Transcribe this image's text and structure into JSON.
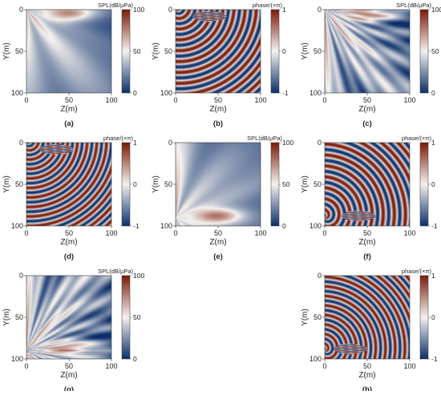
{
  "colormap": {
    "low": "#0b2f6b",
    "mid": "#f4f1ee",
    "high": "#7a1a07"
  },
  "chart_data": [
    {
      "id": "a",
      "type": "heatmap",
      "quantity": "SPL",
      "title": "SPL(dB/μPa)",
      "caption": "(a)",
      "xlabel": "Z(m)",
      "ylabel": "Y(m)",
      "xlim": [
        0,
        100
      ],
      "ylim": [
        0,
        100
      ],
      "xticks": [
        "0",
        "50",
        "100"
      ],
      "yticks": [
        "0",
        "50",
        "100"
      ],
      "colorbar_ticks": [
        "100",
        "50",
        "0"
      ],
      "clim": [
        0,
        100
      ],
      "source_y": 0,
      "focus": [
        50,
        5
      ]
    },
    {
      "id": "b",
      "type": "heatmap",
      "quantity": "phase",
      "title": "phase/(×π)",
      "caption": "(b)",
      "xlabel": "Z(m)",
      "ylabel": "Y(m)",
      "xlim": [
        0,
        100
      ],
      "ylim": [
        0,
        100
      ],
      "xticks": [
        "0",
        "50",
        "100"
      ],
      "yticks": [
        "0",
        "50",
        "100"
      ],
      "colorbar_ticks": [
        "1",
        "0",
        "-1"
      ],
      "clim": [
        -1,
        1
      ],
      "source_y": 0,
      "focus": [
        40,
        8
      ]
    },
    {
      "id": "c",
      "type": "heatmap",
      "quantity": "SPL",
      "title": "SPL(dB/μPa)",
      "caption": "(c)",
      "xlabel": "Z(m)",
      "ylabel": "Y(m)",
      "xlim": [
        0,
        100
      ],
      "ylim": [
        0,
        100
      ],
      "xticks": [
        "0",
        "50",
        "100"
      ],
      "yticks": [
        "0",
        "50",
        "100"
      ],
      "colorbar_ticks": [
        "100",
        "50",
        "0"
      ],
      "clim": [
        0,
        100
      ],
      "source_y": 0,
      "focus": [
        50,
        5
      ]
    },
    {
      "id": "d",
      "type": "heatmap",
      "quantity": "phase",
      "title": "phase/(×π)",
      "caption": "(d)",
      "xlabel": "Z(m)",
      "ylabel": "Y(m)",
      "xlim": [
        0,
        100
      ],
      "ylim": [
        0,
        100
      ],
      "xticks": [
        "0",
        "50",
        "100"
      ],
      "yticks": [
        "0",
        "50",
        "100"
      ],
      "colorbar_ticks": [
        "1",
        "0",
        "-1"
      ],
      "clim": [
        -1,
        1
      ],
      "source_y": 0,
      "focus": [
        35,
        8
      ]
    },
    {
      "id": "e",
      "type": "heatmap",
      "quantity": "SPL",
      "title": "SPL(dB/μPa)",
      "caption": "(e)",
      "xlabel": "Z(m)",
      "ylabel": "Y(m)",
      "xlim": [
        0,
        100
      ],
      "ylim": [
        0,
        100
      ],
      "xticks": [
        "0",
        "50",
        "100"
      ],
      "yticks": [
        "0",
        "50",
        "100"
      ],
      "colorbar_ticks": [
        "100",
        "50",
        "0"
      ],
      "clim": [
        0,
        100
      ],
      "source_y": 90,
      "focus": [
        50,
        88
      ]
    },
    {
      "id": "f",
      "type": "heatmap",
      "quantity": "phase",
      "title": "phase/(×π)",
      "caption": "(f)",
      "xlabel": "Z(m)",
      "ylabel": "Y(m)",
      "xlim": [
        0,
        100
      ],
      "ylim": [
        0,
        100
      ],
      "xticks": [
        "0",
        "50",
        "100"
      ],
      "yticks": [
        "0",
        "50",
        "100"
      ],
      "colorbar_ticks": [
        "1",
        "0",
        "-1"
      ],
      "clim": [
        -1,
        1
      ],
      "source_y": 90,
      "focus": [
        40,
        88
      ]
    },
    {
      "id": "g",
      "type": "heatmap",
      "quantity": "SPL",
      "title": "SPL(dB/μPa)",
      "caption": "(g)",
      "xlabel": "Z(m)",
      "ylabel": "Y(m)",
      "xlim": [
        0,
        100
      ],
      "ylim": [
        0,
        100
      ],
      "xticks": [
        "0",
        "50",
        "100"
      ],
      "yticks": [
        "0",
        "50",
        "100"
      ],
      "colorbar_ticks": [
        "100",
        "50",
        "0"
      ],
      "clim": [
        0,
        100
      ],
      "source_y": 90,
      "focus": [
        50,
        88
      ]
    },
    {
      "id": "h",
      "type": "heatmap",
      "quantity": "phase",
      "title": "phase/(×π)",
      "caption": "(h)",
      "xlabel": "Z(m)",
      "ylabel": "Y(m)",
      "xlim": [
        0,
        100
      ],
      "ylim": [
        0,
        100
      ],
      "xticks": [
        "0",
        "50",
        "100"
      ],
      "yticks": [
        "0",
        "50",
        "100"
      ],
      "colorbar_ticks": [
        "1",
        "0",
        "-1"
      ],
      "clim": [
        -1,
        1
      ],
      "source_y": 90,
      "focus": [
        30,
        88
      ]
    }
  ]
}
